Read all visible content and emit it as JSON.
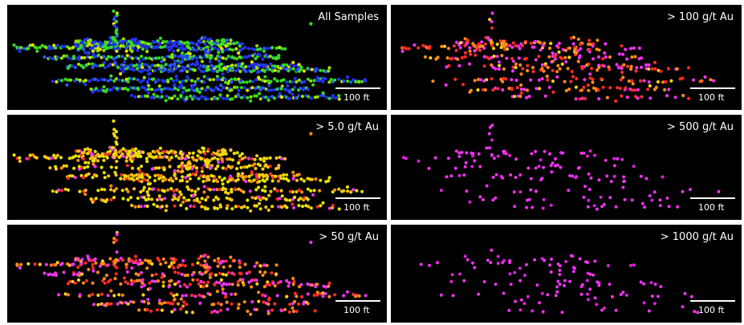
{
  "chart_data": [
    {
      "type": "scatter",
      "title": "All Samples",
      "scale_label": "100 ft",
      "palette": [
        "#2233ee",
        "#2e57f2",
        "#33dd22",
        "#99e000",
        "#e8e300"
      ],
      "palette_weights": [
        0.38,
        0.12,
        0.3,
        0.12,
        0.08
      ]
    },
    {
      "type": "scatter",
      "title": "> 100 g/t Au",
      "scale_label": "100 ft",
      "palette": [
        "#ff2a2a",
        "#ff8a1a",
        "#ee33ee",
        "#ffd21a"
      ],
      "palette_weights": [
        0.3,
        0.25,
        0.35,
        0.1
      ]
    },
    {
      "type": "scatter",
      "title": "> 5.0 g/t Au",
      "scale_label": "100 ft",
      "palette": [
        "#e8e300",
        "#ffc21a",
        "#ff8a1a",
        "#ff2a2a",
        "#ee33ee"
      ],
      "palette_weights": [
        0.45,
        0.25,
        0.12,
        0.1,
        0.08
      ]
    },
    {
      "type": "scatter",
      "title": "> 500 g/t Au",
      "scale_label": "100 ft",
      "palette": [
        "#ee33ee",
        "#dd22dd"
      ],
      "palette_weights": [
        0.7,
        0.3
      ]
    },
    {
      "type": "scatter",
      "title": "> 50 g/t Au",
      "scale_label": "100 ft",
      "palette": [
        "#ff2a2a",
        "#ff8a1a",
        "#ee33ee",
        "#ffd21a"
      ],
      "palette_weights": [
        0.3,
        0.3,
        0.28,
        0.12
      ]
    },
    {
      "type": "scatter",
      "title": "> 1000 g/t Au",
      "scale_label": "100 ft",
      "palette": [
        "#ee33ee",
        "#dd22dd"
      ],
      "palette_weights": [
        0.7,
        0.3
      ]
    }
  ]
}
